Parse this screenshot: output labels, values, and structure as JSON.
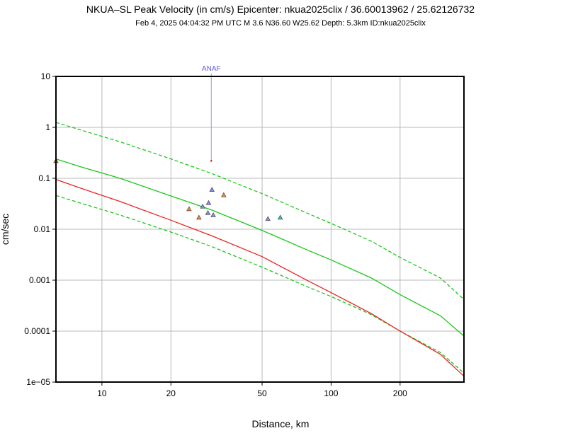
{
  "chart_data": {
    "type": "scatter",
    "title": "NKUA–SL Peak Velocity (in cm/s) Epicenter: nkua2025clix / 36.60013962 / 25.62126732",
    "subtitle": "Feb  4, 2025 04:04:32 PM UTC   M 3.6   N36.60 W25.62   Depth: 5.3km   ID:nkua2025clix",
    "xlabel": "Distance, km",
    "ylabel": "cm/sec",
    "xscale": "log",
    "yscale": "log",
    "xlim": [
      6.3,
      380
    ],
    "ylim": [
      1e-05,
      10
    ],
    "grid": true,
    "x_ticks": [
      10,
      20,
      50,
      100,
      200
    ],
    "x_tick_labels": [
      "10",
      "20",
      "50",
      "100",
      "200"
    ],
    "y_ticks": [
      1e-05,
      0.0001,
      0.001,
      0.01,
      0.1,
      1,
      10
    ],
    "y_tick_labels": [
      "1e−05",
      "0.0001",
      "0.001",
      "0.01",
      "0.1",
      "1",
      "10"
    ],
    "series": [
      {
        "style": "solid",
        "color": "#19c819",
        "x": [
          6.3,
          8,
          12,
          20,
          30,
          50,
          80,
          100,
          150,
          200,
          300,
          380
        ],
        "y": [
          0.24,
          0.17,
          0.1,
          0.045,
          0.024,
          0.0095,
          0.0038,
          0.0025,
          0.0011,
          0.00052,
          0.0002,
          8e-05
        ]
      },
      {
        "style": "dashed",
        "color": "#19c819",
        "x": [
          6.3,
          8,
          12,
          20,
          30,
          50,
          80,
          100,
          150,
          200,
          300,
          380
        ],
        "y": [
          1.25,
          0.9,
          0.52,
          0.24,
          0.125,
          0.05,
          0.02,
          0.013,
          0.0058,
          0.0028,
          0.0011,
          0.00042
        ]
      },
      {
        "style": "dashed",
        "color": "#19c819",
        "x": [
          6.3,
          8,
          12,
          20,
          30,
          50,
          80,
          100,
          150,
          200,
          300,
          380
        ],
        "y": [
          0.046,
          0.033,
          0.019,
          0.0088,
          0.0046,
          0.0018,
          0.00072,
          0.00048,
          0.00021,
          0.0001,
          3.8e-05,
          1.5e-05
        ]
      },
      {
        "style": "solid",
        "color": "#ee2222",
        "x": [
          6.3,
          8,
          12,
          20,
          30,
          50,
          80,
          100,
          150,
          200,
          300,
          380
        ],
        "y": [
          0.095,
          0.065,
          0.035,
          0.015,
          0.0075,
          0.0029,
          0.00095,
          0.00057,
          0.00022,
          0.0001,
          3.5e-05,
          1.3e-05
        ]
      }
    ],
    "points": [
      {
        "x": 6.3,
        "y": 0.22,
        "color": "#f08a3c"
      },
      {
        "x": 24,
        "y": 0.025,
        "color": "#f08a3c"
      },
      {
        "x": 26.5,
        "y": 0.017,
        "color": "#f08a3c"
      },
      {
        "x": 27.5,
        "y": 0.028,
        "color": "#8a8af0"
      },
      {
        "x": 29,
        "y": 0.021,
        "color": "#8a8af0"
      },
      {
        "x": 29.2,
        "y": 0.033,
        "color": "#8a8af0"
      },
      {
        "x": 30.2,
        "y": 0.06,
        "color": "#8a8af0"
      },
      {
        "x": 30.6,
        "y": 0.019,
        "color": "#8a8af0"
      },
      {
        "x": 34,
        "y": 0.047,
        "color": "#f08a3c"
      },
      {
        "x": 53,
        "y": 0.016,
        "color": "#8a8af0"
      },
      {
        "x": 60,
        "y": 0.017,
        "color": "#3cc8c8"
      }
    ],
    "annotations": [
      {
        "text": "ANAF",
        "x": 30,
        "y": 0.22,
        "color": "#5b5bd6"
      }
    ]
  }
}
